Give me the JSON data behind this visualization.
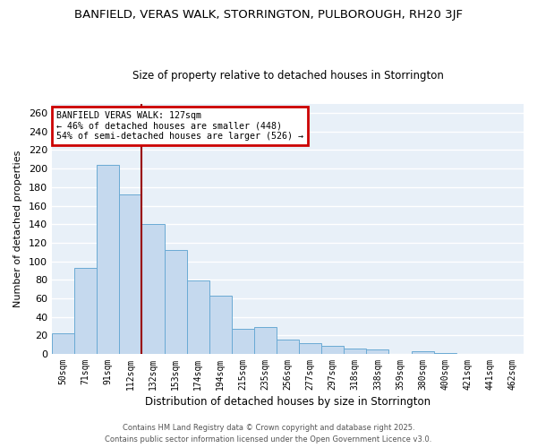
{
  "title": "BANFIELD, VERAS WALK, STORRINGTON, PULBOROUGH, RH20 3JF",
  "subtitle": "Size of property relative to detached houses in Storrington",
  "xlabel": "Distribution of detached houses by size in Storrington",
  "ylabel": "Number of detached properties",
  "categories": [
    "50sqm",
    "71sqm",
    "91sqm",
    "112sqm",
    "132sqm",
    "153sqm",
    "174sqm",
    "194sqm",
    "215sqm",
    "235sqm",
    "256sqm",
    "277sqm",
    "297sqm",
    "318sqm",
    "338sqm",
    "359sqm",
    "380sqm",
    "400sqm",
    "421sqm",
    "441sqm",
    "462sqm"
  ],
  "values": [
    22,
    93,
    204,
    172,
    140,
    112,
    79,
    63,
    27,
    29,
    15,
    12,
    9,
    6,
    5,
    0,
    3,
    1,
    0,
    0,
    0
  ],
  "bar_color": "#c5d9ee",
  "bar_edge_color": "#6aaad4",
  "background_color": "#e8f0f8",
  "grid_color": "#d0dce8",
  "ylim": [
    0,
    270
  ],
  "yticks": [
    0,
    20,
    40,
    60,
    80,
    100,
    120,
    140,
    160,
    180,
    200,
    220,
    240,
    260
  ],
  "property_label": "BANFIELD VERAS WALK: 127sqm",
  "smaller_pct": 46,
  "smaller_count": 448,
  "larger_pct": 54,
  "larger_count": 526,
  "vline_color": "#990000",
  "annotation_box_edge": "#cc0000",
  "footer1": "Contains HM Land Registry data © Crown copyright and database right 2025.",
  "footer2": "Contains public sector information licensed under the Open Government Licence v3.0."
}
